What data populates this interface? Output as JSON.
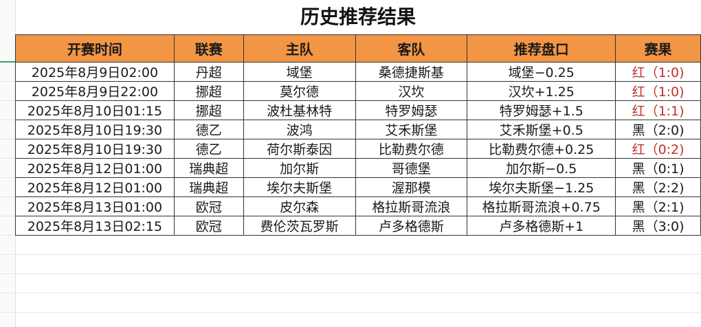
{
  "title": "历史推荐结果",
  "columns": [
    "开赛时间",
    "联赛",
    "主队",
    "客队",
    "推荐盘口",
    "赛果"
  ],
  "colors": {
    "header_bg": "#f29545",
    "red_result": "#c0302a",
    "black_result": "#1a1a1a"
  },
  "rows": [
    {
      "time": "2025年8月9日02:00",
      "league": "丹超",
      "home": "域堡",
      "away": "桑德捷斯基",
      "pick": "域堡−0.25",
      "result": "红（1:0)",
      "win": true
    },
    {
      "time": "2025年8月9日22:00",
      "league": "挪超",
      "home": "莫尔德",
      "away": "汉坎",
      "pick": "汉坎+1.25",
      "result": "红（1:0)",
      "win": true
    },
    {
      "time": "2025年8月10日01:15",
      "league": "挪超",
      "home": "波杜基林特",
      "away": "特罗姆瑟",
      "pick": "特罗姆瑟+1.5",
      "result": "红（1:1)",
      "win": true
    },
    {
      "time": "2025年8月10日19:30",
      "league": "德乙",
      "home": "波鸿",
      "away": "艾禾斯堡",
      "pick": "艾禾斯堡+0.5",
      "result": "黑（2:0)",
      "win": false
    },
    {
      "time": "2025年8月10日19:30",
      "league": "德乙",
      "home": "荷尔斯泰因",
      "away": "比勒费尔德",
      "pick": "比勒费尔德+0.25",
      "result": "红（0:2)",
      "win": true
    },
    {
      "time": "2025年8月12日01:00",
      "league": "瑞典超",
      "home": "加尔斯",
      "away": "哥德堡",
      "pick": "加尔斯−0.5",
      "result": "黑（0:1)",
      "win": false
    },
    {
      "time": "2025年8月12日01:00",
      "league": "瑞典超",
      "home": "埃尔夫斯堡",
      "away": "渥那模",
      "pick": "埃尔夫斯堡−1.25",
      "result": "黑（2:2)",
      "win": false
    },
    {
      "time": "2025年8月13日01:00",
      "league": "欧冠",
      "home": "皮尔森",
      "away": "格拉斯哥流浪",
      "pick": "格拉斯哥流浪+0.75",
      "result": "黑（2:1)",
      "win": false
    },
    {
      "time": "2025年8月13日02:15",
      "league": "欧冠",
      "home": "费伦茨瓦罗斯",
      "away": "卢多格德斯",
      "pick": "卢多格德斯+1",
      "result": "黑（3:0)",
      "win": false
    }
  ]
}
